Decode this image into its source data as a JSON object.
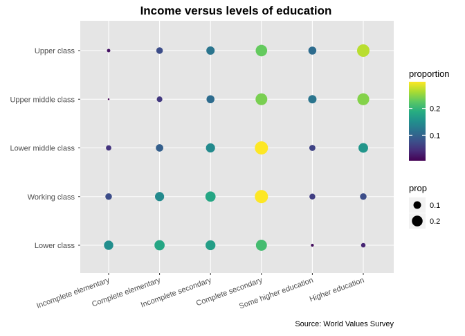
{
  "chart_data": {
    "type": "scatter",
    "title": "Income versus levels of education",
    "caption": "Source: World Values Survey",
    "x_categories": [
      "Incomplete elementary",
      "Complete elementary",
      "Incomplete secondary",
      "Complete secondary",
      "Some higher education",
      "Higher education"
    ],
    "y_categories": [
      "Upper class",
      "Upper middle class",
      "Lower middle class",
      "Working class",
      "Lower class"
    ],
    "proportion": [
      [
        0.02,
        0.075,
        0.12,
        0.23,
        0.11,
        0.27
      ],
      [
        0.005,
        0.055,
        0.11,
        0.24,
        0.12,
        0.245
      ],
      [
        0.05,
        0.095,
        0.145,
        0.3,
        0.065,
        0.16
      ],
      [
        0.075,
        0.145,
        0.18,
        0.3,
        0.06,
        0.075
      ],
      [
        0.15,
        0.18,
        0.17,
        0.21,
        0.015,
        0.035
      ]
    ],
    "color_legend": {
      "title": "proportion",
      "ticks": [
        "0.1",
        "0.2"
      ],
      "tick_values": [
        0.1,
        0.2
      ],
      "min": 0.005,
      "max": 0.3
    },
    "size_legend": {
      "title": "prop",
      "labels": [
        "0.1",
        "0.2"
      ],
      "values": [
        0.1,
        0.2
      ]
    },
    "grid": true,
    "palette": [
      "#440154",
      "#472c7a",
      "#3b518b",
      "#2c718e",
      "#21908d",
      "#27ad81",
      "#5cc863",
      "#aadc32",
      "#fde725"
    ],
    "panel_bg": "#e5e5e5",
    "grid_color": "#ffffff"
  }
}
